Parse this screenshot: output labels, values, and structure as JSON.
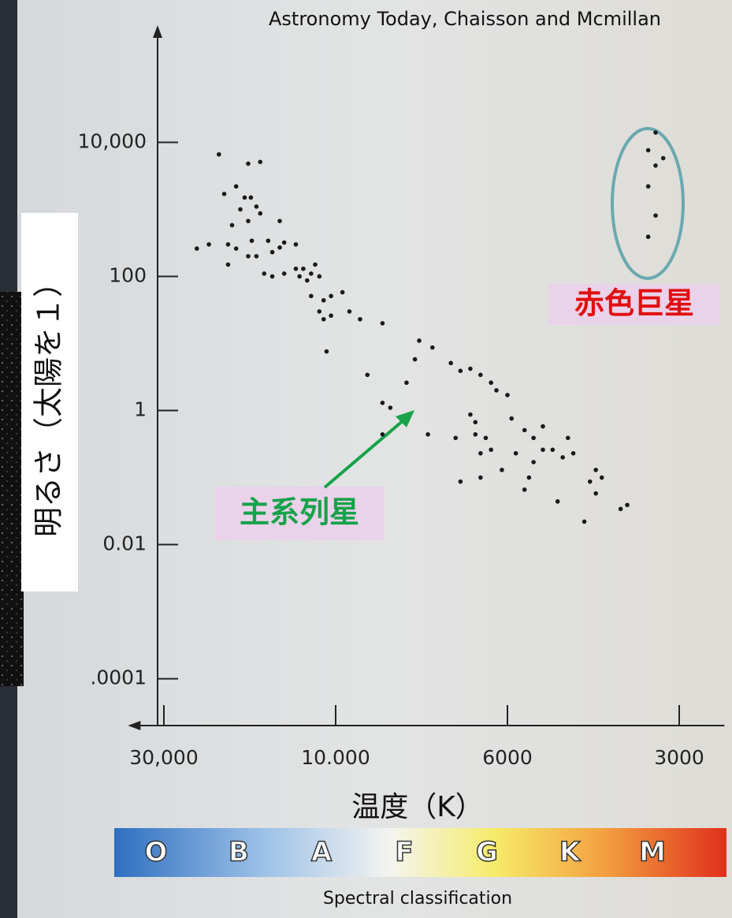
{
  "chart_data": {
    "type": "scatter",
    "source": "Astronomy Today, Chaisson and Mcmillan",
    "xlabel": "温度（K）",
    "ylabel": "明るさ（太陽を１）",
    "annotations": [
      "赤色巨星",
      "主系列星"
    ],
    "spectral_classes": [
      "O",
      "B",
      "A",
      "F",
      "G",
      "K",
      "M"
    ],
    "spectral_label": "Spectral classification",
    "x_scale": "log",
    "y_scale": "log",
    "xlim": [
      37000,
      2500
    ],
    "ylim": [
      2e-05,
      500000
    ],
    "xticks": [
      {
        "value": 30000,
        "label": "30,000"
      },
      {
        "value": 10000,
        "label": "10.000"
      },
      6000,
      3000
    ],
    "yticks": [
      {
        "value": 10000,
        "label": "10,000"
      },
      100,
      1,
      0.01,
      {
        "value": 0.0001,
        "label": ".0001"
      }
    ],
    "series": [
      {
        "color": "#1a1a1a",
        "x": [
          21100,
          17500,
          16200,
          18900,
          20400,
          17900,
          17200,
          16600,
          18400,
          16200,
          19400,
          17500,
          14300,
          24300,
          22500,
          19900,
          18900,
          17100,
          15400,
          13900,
          12900,
          19900,
          17500,
          16600,
          15000,
          14300,
          15800,
          15000,
          13900,
          12900,
          12300,
          11700,
          11400,
          12600,
          12000,
          11100,
          11700,
          10800,
          10300,
          9800,
          11100,
          10300,
          10800,
          9600,
          9300,
          10600,
          8700,
          9100,
          8700,
          8500,
          8100,
          7900,
          7800,
          7500,
          7100,
          6900,
          6700,
          6500,
          6300,
          6200,
          6000,
          6700,
          6600,
          6400,
          6300,
          6500,
          7000,
          7600,
          6600,
          5900,
          5600,
          5400,
          5200,
          5200,
          5800,
          6100,
          5400,
          5000,
          4700,
          4600,
          4800,
          4200,
          4100,
          4300,
          4200,
          5500,
          5600,
          4900,
          4400,
          3800,
          3700,
          6500,
          6900,
          8700,
          3300,
          3400,
          3200,
          3300,
          3400,
          3300,
          3400
        ],
        "y": [
          6600,
          4800,
          5100,
          2200,
          1700,
          1500,
          1500,
          1100,
          1000,
          870,
          580,
          670,
          670,
          260,
          300,
          300,
          260,
          340,
          340,
          320,
          300,
          150,
          200,
          200,
          230,
          270,
          110,
          100,
          110,
          130,
          130,
          110,
          150,
          100,
          87,
          100,
          51,
          44,
          51,
          58,
          30,
          26,
          23,
          30,
          23,
          7.6,
          20,
          3.4,
          1.3,
          1.1,
          2.6,
          5.8,
          11,
          8.7,
          5.1,
          3.9,
          4.2,
          3.4,
          2.6,
          2.0,
          1.7,
          0.87,
          0.67,
          0.39,
          0.26,
          0.23,
          0.39,
          0.44,
          0.44,
          0.76,
          0.51,
          0.39,
          0.58,
          0.26,
          0.23,
          0.13,
          0.17,
          0.26,
          0.39,
          0.23,
          0.2,
          0.13,
          0.1,
          0.087,
          0.058,
          0.1,
          0.066,
          0.044,
          0.022,
          0.034,
          0.039,
          0.1,
          0.087,
          0.44,
          14000,
          7600,
          5800,
          4500,
          2200,
          810,
          390
        ]
      }
    ]
  }
}
